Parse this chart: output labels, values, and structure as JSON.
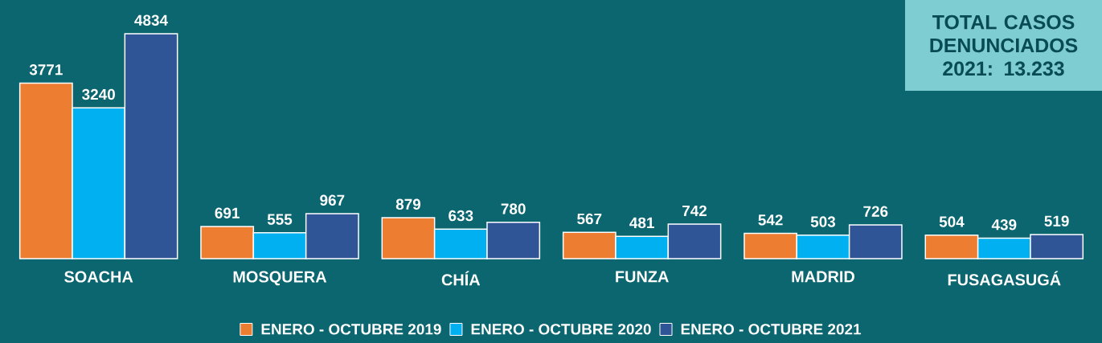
{
  "chart_data": {
    "type": "bar",
    "categories": [
      "SOACHA",
      "MOSQUERA",
      "CHÍA",
      "FUNZA",
      "MADRID",
      "FUSAGASUGÁ"
    ],
    "series": [
      {
        "name": "ENERO - OCTUBRE 2019",
        "color": "#ed7d31",
        "values": [
          3771,
          691,
          879,
          567,
          542,
          504
        ]
      },
      {
        "name": "ENERO - OCTUBRE 2020",
        "color": "#00b0f0",
        "values": [
          3240,
          555,
          633,
          481,
          503,
          439
        ]
      },
      {
        "name": "ENERO - OCTUBRE 2021",
        "color": "#2f5597",
        "values": [
          4834,
          967,
          780,
          742,
          726,
          519
        ]
      }
    ],
    "data_labels": true,
    "legend": "bottom",
    "annotations": [
      "TOTAL CASOS DENUNCIADOS 2021: 13.233"
    ]
  }
}
